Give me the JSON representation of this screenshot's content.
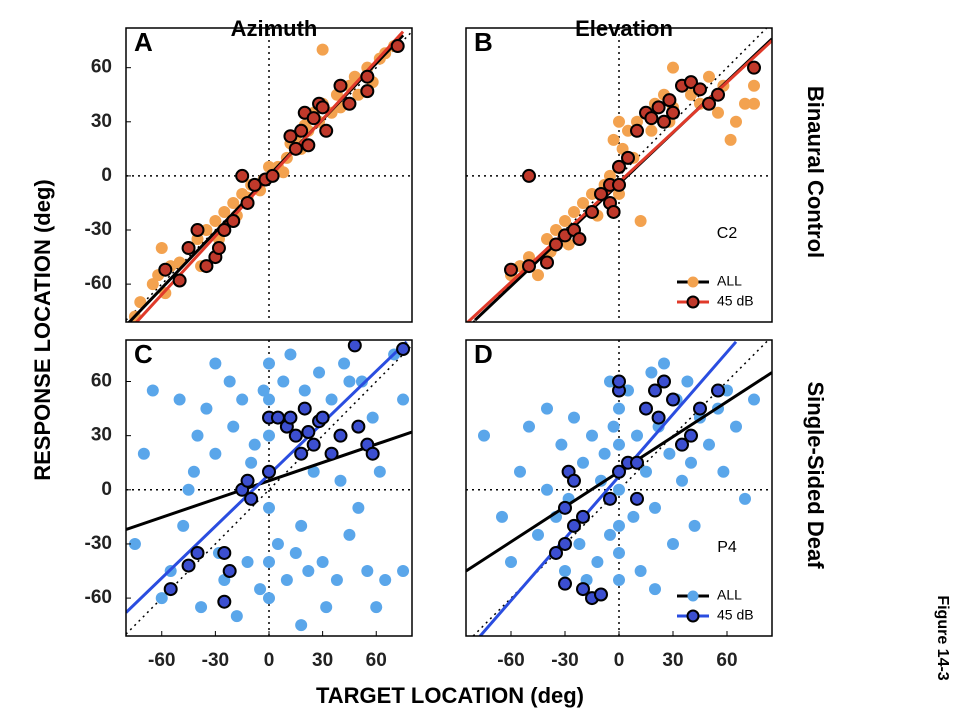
{
  "figure": {
    "y_label": "RESPONSE LOCATION (deg)",
    "x_label": "TARGET LOCATION (deg)",
    "row_labels": [
      "Binaural Control",
      "Single-Sided Deaf"
    ],
    "caption": "Figure 14-3"
  },
  "chart_data": [
    {
      "type": "scatter",
      "title": "A",
      "subtitle": "Azimuth",
      "xlim": [
        -80,
        80
      ],
      "ylim": [
        -81,
        82
      ],
      "yticks": [
        -60,
        -30,
        0,
        30,
        60
      ],
      "zero_lines": true,
      "identity_line": true,
      "series": [
        {
          "name": "ALL",
          "color": "#f3a24f",
          "line_color": "#000000",
          "x": [
            -75,
            -72,
            -65,
            -62,
            -58,
            -55,
            -50,
            -45,
            -40,
            -38,
            -35,
            -30,
            -28,
            -25,
            -20,
            -18,
            -15,
            -12,
            -10,
            -5,
            -3,
            5,
            8,
            10,
            12,
            15,
            18,
            20,
            22,
            25,
            28,
            30,
            35,
            38,
            40,
            45,
            48,
            50,
            55,
            58,
            62,
            65,
            70,
            30,
            -60,
            0
          ],
          "values": [
            -78,
            -70,
            -60,
            -55,
            -65,
            -50,
            -48,
            -40,
            -35,
            -50,
            -30,
            -25,
            -35,
            -20,
            -15,
            -22,
            -10,
            -12,
            -5,
            -8,
            -2,
            5,
            2,
            10,
            18,
            20,
            15,
            28,
            25,
            35,
            30,
            40,
            35,
            45,
            38,
            50,
            55,
            45,
            60,
            52,
            65,
            68,
            72,
            70,
            -40,
            5
          ],
          "fit": {
            "x": [
              -80,
              75
            ],
            "values": [
              -83,
              78
            ]
          }
        },
        {
          "name": "45 dB",
          "color": "#c0392b",
          "line_color": "#e03a2a",
          "edge": "#000000",
          "x": [
            -58,
            -50,
            -45,
            -40,
            -35,
            -30,
            -28,
            -25,
            -20,
            -15,
            -12,
            -8,
            -2,
            2,
            12,
            15,
            18,
            20,
            22,
            25,
            28,
            30,
            32,
            40,
            45,
            55,
            55,
            72
          ],
          "values": [
            -52,
            -58,
            -40,
            -30,
            -50,
            -45,
            -40,
            -30,
            -25,
            0,
            -15,
            -5,
            -2,
            0,
            22,
            15,
            25,
            35,
            17,
            32,
            40,
            38,
            25,
            50,
            40,
            47,
            55,
            72
          ],
          "fit": {
            "x": [
              -75,
              75
            ],
            "values": [
              -82,
              80
            ]
          }
        }
      ]
    },
    {
      "type": "scatter",
      "title": "B",
      "subtitle": "Elevation",
      "annotation": "C2",
      "legend": "lower right",
      "xlim": [
        -85,
        85
      ],
      "ylim": [
        -81,
        82
      ],
      "zero_lines": true,
      "identity_line": true,
      "series": [
        {
          "name": "ALL",
          "color": "#f3a24f",
          "line_color": "#000000",
          "x": [
            -60,
            -55,
            -50,
            -45,
            -40,
            -38,
            -35,
            -30,
            -28,
            -25,
            -20,
            -15,
            -12,
            -8,
            -5,
            -3,
            0,
            0,
            2,
            5,
            8,
            10,
            12,
            15,
            18,
            20,
            25,
            28,
            30,
            35,
            40,
            45,
            50,
            55,
            58,
            62,
            65,
            70,
            75,
            75,
            30
          ],
          "values": [
            -55,
            -50,
            -45,
            -55,
            -35,
            -42,
            -30,
            -25,
            -38,
            -20,
            -15,
            -10,
            -22,
            -5,
            0,
            20,
            30,
            -10,
            15,
            25,
            10,
            30,
            -25,
            35,
            25,
            40,
            45,
            30,
            38,
            50,
            45,
            40,
            55,
            35,
            50,
            20,
            30,
            40,
            50,
            40,
            60
          ],
          "fit": {
            "x": [
              -80,
              85
            ],
            "values": [
              -80,
              76
            ]
          }
        },
        {
          "name": "45 dB",
          "color": "#c0392b",
          "line_color": "#e03a2a",
          "edge": "#000000",
          "x": [
            -60,
            -50,
            -40,
            -35,
            -30,
            -25,
            -22,
            -15,
            -10,
            -5,
            -5,
            -3,
            0,
            0,
            5,
            10,
            15,
            18,
            22,
            25,
            28,
            30,
            35,
            40,
            45,
            50,
            55,
            75,
            -50
          ],
          "values": [
            -52,
            -50,
            -48,
            -38,
            -33,
            -30,
            -35,
            -20,
            -10,
            -5,
            -15,
            -20,
            5,
            -5,
            10,
            25,
            35,
            32,
            38,
            30,
            42,
            35,
            50,
            52,
            48,
            40,
            45,
            60,
            0
          ],
          "fit": {
            "x": [
              -85,
              85
            ],
            "values": [
              -82,
              75
            ]
          }
        }
      ]
    },
    {
      "type": "scatter",
      "title": "C",
      "xlim": [
        -80,
        80
      ],
      "ylim": [
        -81,
        83
      ],
      "xticks": [
        -60,
        -30,
        0,
        30,
        60
      ],
      "yticks": [
        -60,
        -30,
        0,
        30,
        60
      ],
      "zero_lines": true,
      "identity_line": true,
      "series": [
        {
          "name": "ALL",
          "color": "#5aa6ea",
          "line_color": "#000000",
          "x": [
            -75,
            -70,
            -65,
            -60,
            -55,
            -50,
            -48,
            -45,
            -42,
            -40,
            -38,
            -35,
            -30,
            -30,
            -28,
            -25,
            -22,
            -20,
            -18,
            -15,
            -12,
            -10,
            -8,
            -5,
            -3,
            0,
            0,
            0,
            0,
            0,
            0,
            5,
            8,
            10,
            12,
            15,
            18,
            20,
            22,
            25,
            28,
            30,
            32,
            35,
            38,
            40,
            42,
            45,
            50,
            52,
            55,
            58,
            60,
            62,
            65,
            70,
            75,
            75,
            18,
            45
          ],
          "values": [
            -30,
            20,
            55,
            -60,
            -45,
            50,
            -20,
            0,
            10,
            30,
            -65,
            45,
            70,
            20,
            -35,
            -50,
            60,
            35,
            -70,
            50,
            -40,
            15,
            25,
            -55,
            55,
            70,
            -60,
            -40,
            30,
            -10,
            50,
            -30,
            60,
            -50,
            75,
            -35,
            -20,
            55,
            -45,
            10,
            65,
            -40,
            -65,
            50,
            -50,
            5,
            70,
            -25,
            -10,
            60,
            -45,
            40,
            -65,
            10,
            -50,
            75,
            50,
            -45,
            -75,
            60
          ],
          "fit": {
            "x": [
              -80,
              80
            ],
            "values": [
              -22,
              32
            ]
          }
        },
        {
          "name": "45 dB",
          "color": "#3c4fd0",
          "line_color": "#2a4de0",
          "edge": "#000000",
          "x": [
            -55,
            -45,
            -40,
            -25,
            -22,
            -25,
            -15,
            -12,
            -10,
            0,
            0,
            5,
            10,
            12,
            15,
            18,
            20,
            22,
            25,
            28,
            30,
            35,
            40,
            48,
            50,
            55,
            58,
            75
          ],
          "values": [
            -55,
            -42,
            -35,
            -35,
            -45,
            -62,
            0,
            5,
            -5,
            10,
            40,
            40,
            35,
            40,
            30,
            20,
            45,
            32,
            25,
            38,
            40,
            20,
            30,
            80,
            35,
            25,
            20,
            78
          ],
          "fit": {
            "x": [
              -80,
              77
            ],
            "values": [
              -68,
              82
            ]
          }
        }
      ]
    },
    {
      "type": "scatter",
      "title": "D",
      "annotation": "P4",
      "legend": "lower right",
      "xlim": [
        -85,
        85
      ],
      "ylim": [
        -81,
        83
      ],
      "xticks": [
        -60,
        -30,
        0,
        30,
        60
      ],
      "zero_lines": true,
      "identity_line": true,
      "series": [
        {
          "name": "ALL",
          "color": "#5aa6ea",
          "line_color": "#000000",
          "x": [
            -75,
            -65,
            -60,
            -55,
            -50,
            -45,
            -40,
            -40,
            -35,
            -32,
            -30,
            -28,
            -25,
            -22,
            -20,
            -18,
            -15,
            -12,
            -10,
            -8,
            -5,
            -3,
            0,
            0,
            0,
            0,
            0,
            0,
            5,
            8,
            10,
            12,
            15,
            18,
            20,
            22,
            25,
            28,
            30,
            32,
            35,
            38,
            40,
            42,
            45,
            50,
            55,
            58,
            60,
            65,
            70,
            75,
            20,
            -5
          ],
          "values": [
            30,
            -15,
            -40,
            10,
            35,
            -25,
            45,
            0,
            -15,
            25,
            -45,
            -5,
            40,
            -30,
            15,
            -50,
            30,
            -40,
            5,
            20,
            -25,
            35,
            -50,
            -20,
            25,
            45,
            -35,
            0,
            55,
            -15,
            30,
            -45,
            10,
            65,
            -10,
            35,
            70,
            20,
            -30,
            50,
            5,
            60,
            15,
            -20,
            40,
            25,
            45,
            10,
            55,
            35,
            -5,
            50,
            -55,
            60
          ],
          "fit": {
            "x": [
              -85,
              85
            ],
            "values": [
              -45,
              65
            ]
          }
        },
        {
          "name": "45 dB",
          "color": "#3c4fd0",
          "line_color": "#2a4de0",
          "edge": "#000000",
          "x": [
            -35,
            -30,
            -30,
            -25,
            -28,
            -25,
            -20,
            -15,
            -10,
            -5,
            0,
            0,
            0,
            5,
            10,
            10,
            15,
            20,
            22,
            25,
            30,
            35,
            40,
            45,
            55,
            -30,
            -20
          ],
          "values": [
            -35,
            -30,
            -10,
            -20,
            10,
            5,
            -55,
            -60,
            -58,
            -5,
            10,
            55,
            60,
            15,
            15,
            -5,
            45,
            55,
            40,
            60,
            50,
            25,
            30,
            45,
            55,
            -52,
            -15
          ],
          "fit": {
            "x": [
              -78,
              65
            ],
            "values": [
              -82,
              82
            ]
          }
        }
      ]
    }
  ]
}
